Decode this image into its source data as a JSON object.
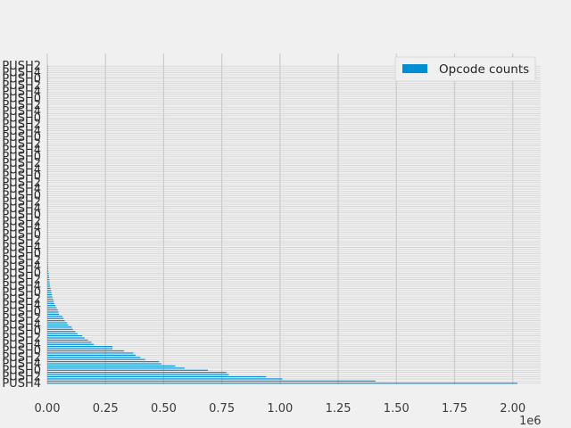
{
  "chart_data": {
    "type": "bar",
    "orientation": "horizontal",
    "title": "",
    "xlabel": "",
    "ylabel": "",
    "x_scale_label": "1e6",
    "xlim": [
      0,
      2.12
    ],
    "xticks": [
      0,
      0.25,
      0.5,
      0.75,
      1.0,
      1.25,
      1.5,
      1.75,
      2.0
    ],
    "xtick_labels": [
      "0.00",
      "0.25",
      "0.50",
      "0.75",
      "1.00",
      "1.25",
      "1.50",
      "1.75",
      "2.00"
    ],
    "grid": true,
    "legend": {
      "position": "top-right",
      "entries": [
        "Opcode counts"
      ]
    },
    "color": "#008fd5",
    "category_labels_visible": [
      "PUSH4",
      "PUSH2",
      "PUSH0"
    ],
    "series": [
      {
        "name": "Opcode counts",
        "values": [
          2.02,
          1.41,
          1.01,
          0.94,
          0.78,
          0.77,
          0.69,
          0.59,
          0.55,
          0.49,
          0.48,
          0.42,
          0.4,
          0.38,
          0.37,
          0.33,
          0.28,
          0.28,
          0.2,
          0.19,
          0.175,
          0.16,
          0.15,
          0.13,
          0.12,
          0.11,
          0.105,
          0.09,
          0.085,
          0.075,
          0.07,
          0.065,
          0.05,
          0.048,
          0.045,
          0.04,
          0.035,
          0.03,
          0.028,
          0.025,
          0.022,
          0.02,
          0.018,
          0.016,
          0.014,
          0.012,
          0.011,
          0.01,
          0.009,
          0.008,
          0.007,
          0.006,
          0.005,
          0.004,
          0.004,
          0.003,
          0.003,
          0.002,
          0.002,
          0.002,
          0.0015,
          0.0015,
          0.001,
          0.001,
          0.001,
          0.0008,
          0.0008,
          0.0006,
          0.0006,
          0.0005,
          0.0005,
          0.0004,
          0.0004,
          0.0003,
          0.0003,
          0.0003,
          0.0002,
          0.0002,
          0.0002,
          0.0002,
          0.0001,
          0.0001,
          0.0001,
          0.0001,
          0.0001,
          0.0001,
          0.0001,
          0.0001,
          0.0001,
          0.0001,
          0.0001,
          0.0001,
          0.0001,
          0.0001,
          0.0001,
          0.0001,
          0.0001,
          0.0001,
          0.0001,
          0.0001,
          0.0001,
          0.0001,
          0.0001,
          0.0001,
          0.0001,
          0.0001,
          0.0001,
          0.0001,
          0.0001,
          0.0001,
          0.0001,
          0.0001,
          0.0001,
          0.0001,
          0.0001,
          0.0001,
          0.0001,
          0.0001,
          0.0001,
          0.0001,
          0.0001,
          0.0001,
          0.0001,
          0.0001,
          0.0001,
          0.0001,
          0.0001,
          0.0001,
          0.0001,
          0.0001,
          0.0001,
          0.0001,
          0.0001,
          0.0001,
          0.0001,
          0.0001,
          0.0001,
          0.0001,
          0.0001,
          0.0001,
          0.0001,
          0.0001,
          0.0001,
          0.0001,
          0.0001,
          0.0001,
          0.0001,
          0.0001
        ]
      }
    ]
  }
}
